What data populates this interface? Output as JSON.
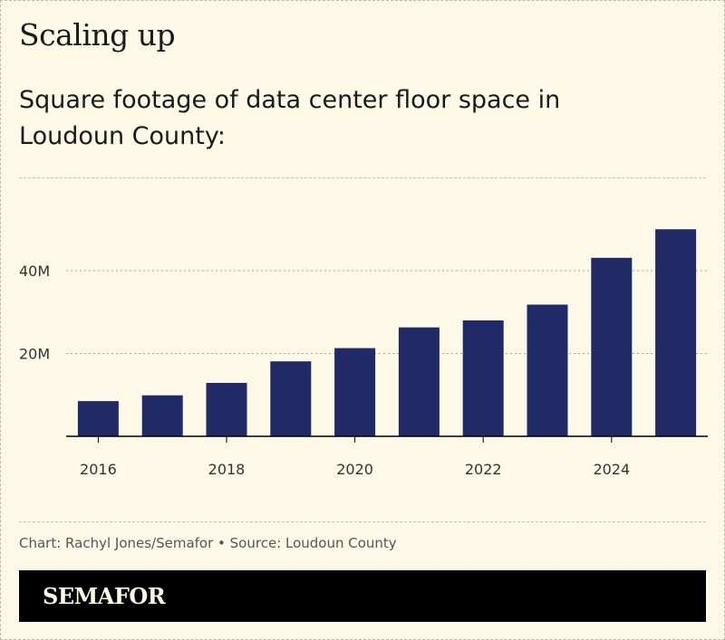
{
  "title": "Scaling up",
  "subtitle": "Square footage of data center floor space in Loudoun County:",
  "footer": "Chart: Rachyl Jones/Semafor • Source: Loudoun County",
  "logo": "SEMAFOR",
  "chart_data": {
    "type": "bar",
    "categories": [
      "2016",
      "2017",
      "2018",
      "2019",
      "2020",
      "2021",
      "2022",
      "2023",
      "2024",
      "2025"
    ],
    "values": [
      8.5,
      9.9,
      12.9,
      18.1,
      21.3,
      26.3,
      28.0,
      31.8,
      43.1,
      50.0
    ],
    "unit": "M",
    "ylim": [
      0,
      55
    ],
    "yticks": [
      {
        "v": 20,
        "label": "20M"
      },
      {
        "v": 40,
        "label": "40M"
      }
    ],
    "xtick_labels": [
      "2016",
      "2018",
      "2020",
      "2022",
      "2024"
    ],
    "bar_color": "#202a66",
    "grid": true
  }
}
